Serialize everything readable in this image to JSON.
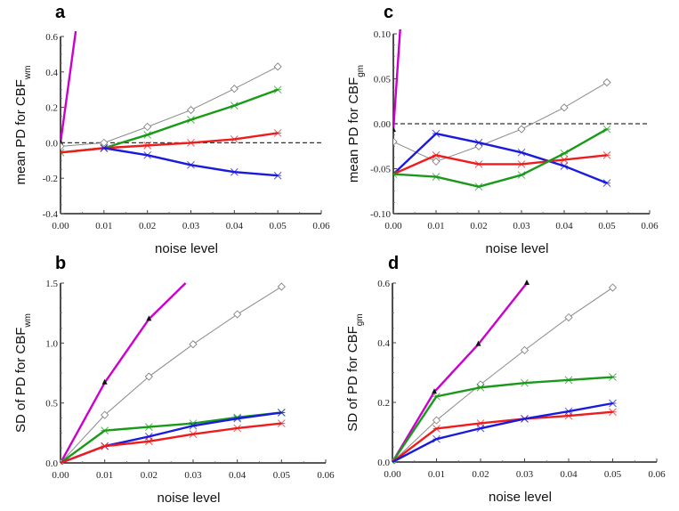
{
  "chart_data": [
    {
      "panel": "a",
      "type": "line",
      "xlabel": "noise level",
      "ylabel": "mean PD for CBF",
      "ylabel_subscript": "wm",
      "xlim": [
        0,
        0.06
      ],
      "ylim": [
        -0.4,
        0.6
      ],
      "xticks": [
        "0.00",
        "0.01",
        "0.02",
        "0.03",
        "0.04",
        "0.05",
        "0.06"
      ],
      "yticks": [
        "-0.4",
        "-0.2",
        "0.0",
        "0.2",
        "0.4",
        "0.6"
      ],
      "ytick_values": [
        -0.4,
        -0.2,
        0.0,
        0.2,
        0.4,
        0.6
      ],
      "reference_line": 0,
      "grid": false,
      "series": [
        {
          "name": "magenta",
          "color": "#cc00cc",
          "marker": "triangle",
          "x": [
            0,
            0.0035
          ],
          "y": [
            0.0,
            0.63
          ],
          "clip": true
        },
        {
          "name": "gray",
          "color": "#8a8a8a",
          "marker": "diamond",
          "x": [
            0,
            0.01,
            0.02,
            0.03,
            0.04,
            0.05
          ],
          "y": [
            -0.02,
            0.0,
            0.09,
            0.185,
            0.305,
            0.43
          ]
        },
        {
          "name": "green",
          "color": "#1a9a1a",
          "marker": "star",
          "x": [
            0,
            0.01,
            0.02,
            0.03,
            0.04,
            0.05
          ],
          "y": [
            -0.055,
            -0.03,
            0.045,
            0.13,
            0.21,
            0.3
          ]
        },
        {
          "name": "red",
          "color": "#ee1c1c",
          "marker": "star",
          "x": [
            0,
            0.01,
            0.02,
            0.03,
            0.04,
            0.05
          ],
          "y": [
            -0.055,
            -0.03,
            -0.015,
            0.0,
            0.02,
            0.055
          ]
        },
        {
          "name": "blue",
          "color": "#1a1adf",
          "marker": "star",
          "x": [
            0.01,
            0.02,
            0.03,
            0.04,
            0.05
          ],
          "y": [
            -0.03,
            -0.07,
            -0.125,
            -0.165,
            -0.185
          ]
        }
      ]
    },
    {
      "panel": "c",
      "type": "line",
      "xlabel": "noise level",
      "ylabel": "mean PD for CBF",
      "ylabel_subscript": "gm",
      "xlim": [
        0,
        0.06
      ],
      "ylim": [
        -0.1,
        0.1
      ],
      "xticks": [
        "0.00",
        "0.01",
        "0.02",
        "0.03",
        "0.04",
        "0.05",
        "0.06"
      ],
      "yticks": [
        "-0.10",
        "-0.05",
        "0.00",
        "0.05",
        "0.10"
      ],
      "ytick_values": [
        -0.1,
        -0.05,
        0.0,
        0.05,
        0.1
      ],
      "reference_line": 0,
      "grid": false,
      "series": [
        {
          "name": "magenta",
          "color": "#cc00cc",
          "marker": "triangle",
          "x": [
            0,
            0.0016
          ],
          "y": [
            -0.007,
            0.105
          ],
          "clip": true
        },
        {
          "name": "gray",
          "color": "#8a8a8a",
          "marker": "diamond",
          "x": [
            0,
            0.01,
            0.02,
            0.03,
            0.04,
            0.05
          ],
          "y": [
            -0.02,
            -0.042,
            -0.025,
            -0.006,
            0.018,
            0.046
          ]
        },
        {
          "name": "blue",
          "color": "#1a1adf",
          "marker": "star",
          "x": [
            0,
            0.01,
            0.02,
            0.03,
            0.04,
            0.05
          ],
          "y": [
            -0.056,
            -0.011,
            -0.021,
            -0.032,
            -0.047,
            -0.066
          ]
        },
        {
          "name": "red",
          "color": "#ee1c1c",
          "marker": "star",
          "x": [
            0,
            0.01,
            0.02,
            0.03,
            0.04,
            0.05
          ],
          "y": [
            -0.056,
            -0.035,
            -0.045,
            -0.045,
            -0.04,
            -0.035
          ]
        },
        {
          "name": "green",
          "color": "#1a9a1a",
          "marker": "star",
          "x": [
            0,
            0.01,
            0.02,
            0.03,
            0.04,
            0.05
          ],
          "y": [
            -0.056,
            -0.059,
            -0.07,
            -0.057,
            -0.033,
            -0.006
          ]
        }
      ]
    },
    {
      "panel": "b",
      "type": "line",
      "xlabel": "noise level",
      "ylabel": "SD of PD for CBF",
      "ylabel_subscript": "wm",
      "xlim": [
        0,
        0.06
      ],
      "ylim": [
        0,
        1.5
      ],
      "xticks": [
        "0.00",
        "0.01",
        "0.02",
        "0.03",
        "0.04",
        "0.05",
        "0.06"
      ],
      "yticks": [
        "0.0",
        "0.5",
        "1.0",
        "1.5"
      ],
      "ytick_values": [
        0,
        0.5,
        1.0,
        1.5
      ],
      "grid": false,
      "series": [
        {
          "name": "magenta",
          "color": "#cc00cc",
          "marker": "triangle",
          "x": [
            0,
            0.01,
            0.02,
            0.0283
          ],
          "y": [
            0,
            0.67,
            1.2,
            1.5
          ],
          "marker_idx": [
            1,
            2
          ]
        },
        {
          "name": "gray",
          "color": "#8a8a8a",
          "marker": "diamond",
          "x": [
            0,
            0.01,
            0.02,
            0.03,
            0.04,
            0.05
          ],
          "y": [
            0,
            0.4,
            0.72,
            0.99,
            1.24,
            1.47
          ]
        },
        {
          "name": "green",
          "color": "#1a9a1a",
          "marker": "star",
          "x": [
            0,
            0.01,
            0.02,
            0.03,
            0.04,
            0.05
          ],
          "y": [
            0,
            0.27,
            0.3,
            0.33,
            0.38,
            0.42
          ]
        },
        {
          "name": "blue",
          "color": "#1a1adf",
          "marker": "star",
          "x": [
            0,
            0.01,
            0.02,
            0.03,
            0.04,
            0.05
          ],
          "y": [
            0,
            0.14,
            0.22,
            0.31,
            0.37,
            0.42
          ]
        },
        {
          "name": "red",
          "color": "#ee1c1c",
          "marker": "star",
          "x": [
            0,
            0.01,
            0.02,
            0.03,
            0.04,
            0.05
          ],
          "y": [
            0,
            0.14,
            0.18,
            0.24,
            0.29,
            0.33
          ]
        }
      ]
    },
    {
      "panel": "d",
      "type": "line",
      "xlabel": "noise level",
      "ylabel": "SD of PD for CBF",
      "ylabel_subscript": "gm",
      "xlim": [
        0,
        0.06
      ],
      "ylim": [
        0,
        0.6
      ],
      "xticks": [
        "0.00",
        "0.01",
        "0.02",
        "0.03",
        "0.04",
        "0.05",
        "0.06"
      ],
      "yticks": [
        "0.0",
        "0.2",
        "0.4",
        "0.6"
      ],
      "ytick_values": [
        0,
        0.2,
        0.4,
        0.6
      ],
      "grid": false,
      "series": [
        {
          "name": "magenta",
          "color": "#cc00cc",
          "marker": "triangle",
          "x": [
            0,
            0.0095,
            0.0195,
            0.0305
          ],
          "y": [
            0,
            0.235,
            0.395,
            0.6
          ],
          "marker_idx": [
            1,
            2,
            3
          ]
        },
        {
          "name": "gray",
          "color": "#8a8a8a",
          "marker": "diamond",
          "x": [
            0,
            0.01,
            0.02,
            0.03,
            0.04,
            0.05
          ],
          "y": [
            0,
            0.14,
            0.26,
            0.375,
            0.485,
            0.585
          ]
        },
        {
          "name": "green",
          "color": "#1a9a1a",
          "marker": "star",
          "x": [
            0,
            0.01,
            0.02,
            0.03,
            0.04,
            0.05
          ],
          "y": [
            0,
            0.22,
            0.25,
            0.265,
            0.275,
            0.285
          ]
        },
        {
          "name": "red",
          "color": "#ee1c1c",
          "marker": "star",
          "x": [
            0,
            0.01,
            0.02,
            0.03,
            0.04,
            0.05
          ],
          "y": [
            0,
            0.112,
            0.13,
            0.145,
            0.155,
            0.168
          ]
        },
        {
          "name": "blue",
          "color": "#1a1adf",
          "marker": "star",
          "x": [
            0,
            0.01,
            0.02,
            0.03,
            0.04,
            0.05
          ],
          "y": [
            0,
            0.077,
            0.113,
            0.145,
            0.17,
            0.197
          ]
        }
      ]
    }
  ]
}
